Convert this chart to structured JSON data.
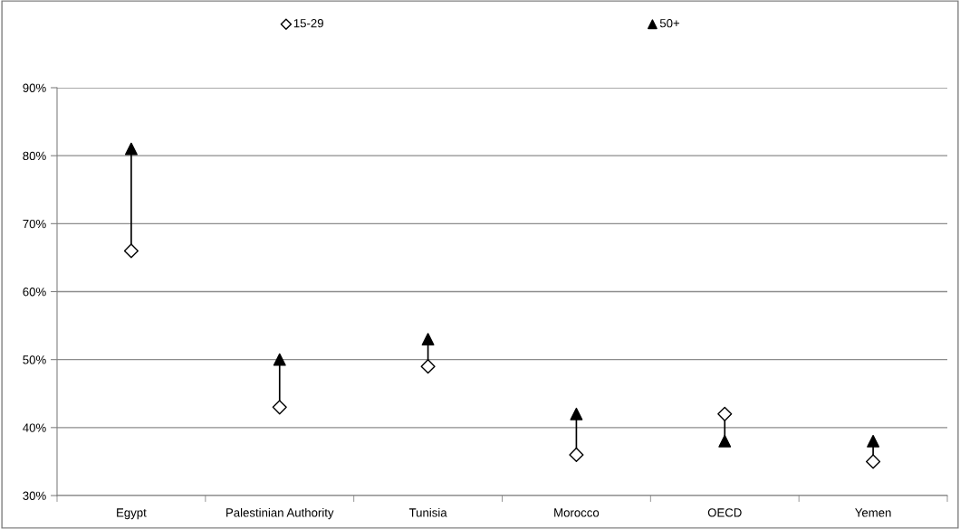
{
  "chart_data": {
    "type": "scatter",
    "categories": [
      "Egypt",
      "Palestinian Authority",
      "Tunisia",
      "Morocco",
      "OECD",
      "Yemen"
    ],
    "series": [
      {
        "name": "15-29",
        "color": "#000000",
        "marker": "diamond",
        "values": [
          66,
          43,
          49,
          36,
          42,
          35
        ]
      },
      {
        "name": "50+",
        "color": "#000000",
        "marker": "triangle",
        "values": [
          81,
          50,
          53,
          42,
          38,
          38
        ]
      }
    ],
    "ylim": [
      30,
      90
    ],
    "yticks": [
      {
        "value": 30,
        "label": "30%"
      },
      {
        "value": 40,
        "label": "40%"
      },
      {
        "value": 50,
        "label": "50%"
      },
      {
        "value": 60,
        "label": "60%"
      },
      {
        "value": 70,
        "label": "70%"
      },
      {
        "value": 80,
        "label": "80%"
      },
      {
        "value": 90,
        "label": "90%"
      }
    ],
    "grid": "y",
    "legend": "top"
  }
}
